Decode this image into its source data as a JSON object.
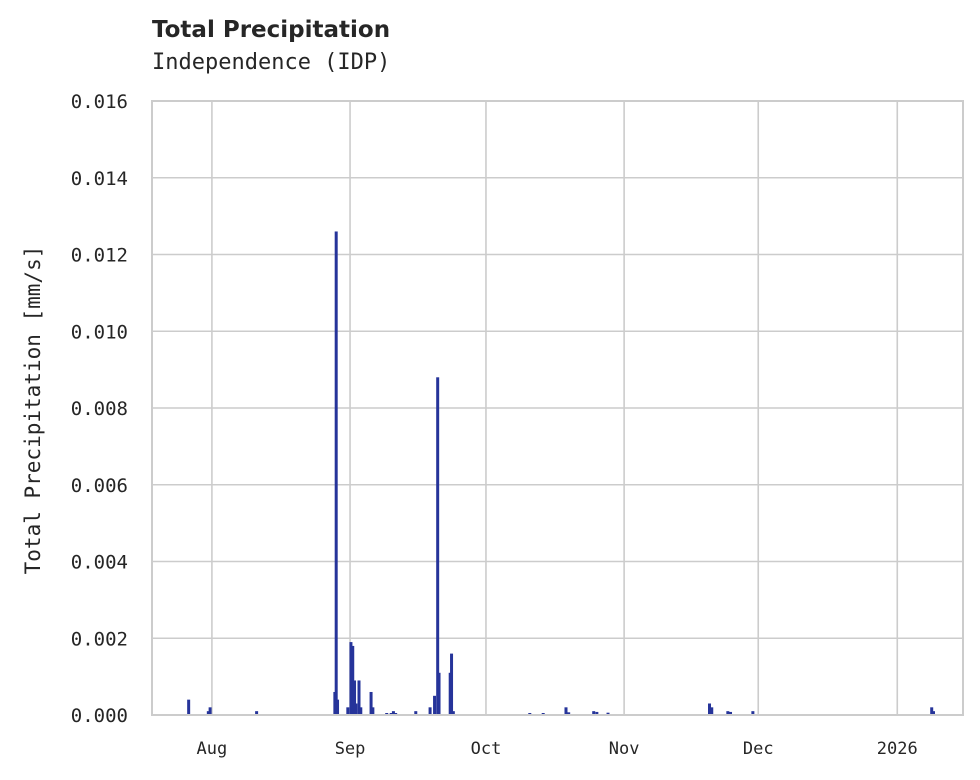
{
  "chart_data": {
    "type": "bar",
    "title": "Total Precipitation",
    "subtitle": "Independence (IDP)",
    "xlabel": "",
    "ylabel": "Total Precipitation [mm/s]",
    "ylim": [
      0,
      0.016
    ],
    "yticks": [
      "0.000",
      "0.002",
      "0.004",
      "0.006",
      "0.008",
      "0.010",
      "0.012",
      "0.014",
      "0.016"
    ],
    "xticks": [
      {
        "label": "Aug",
        "day": 13.4
      },
      {
        "label": "Sep",
        "day": 44.3
      },
      {
        "label": "Oct",
        "day": 74.7
      },
      {
        "label": "Nov",
        "day": 105.6
      },
      {
        "label": "Dec",
        "day": 135.6
      },
      {
        "label": "2026",
        "day": 166.7
      }
    ],
    "x_range_days": [
      0,
      181.4
    ],
    "x_axis_start": "approx. 2025-07-18",
    "grid": true,
    "legend": null,
    "color": "#26349a",
    "series": [
      {
        "name": "Total Precipitation",
        "points": [
          {
            "day": 8.2,
            "value": 0.0004
          },
          {
            "day": 12.6,
            "value": 0.0001
          },
          {
            "day": 13.0,
            "value": 0.0002
          },
          {
            "day": 23.4,
            "value": 0.0001
          },
          {
            "day": 40.9,
            "value": 0.0006
          },
          {
            "day": 41.2,
            "value": 0.0126
          },
          {
            "day": 41.5,
            "value": 0.0004
          },
          {
            "day": 43.8,
            "value": 0.0002
          },
          {
            "day": 44.5,
            "value": 0.0019
          },
          {
            "day": 44.9,
            "value": 0.0018
          },
          {
            "day": 45.3,
            "value": 0.0009
          },
          {
            "day": 45.6,
            "value": 0.0003
          },
          {
            "day": 46.3,
            "value": 0.0009
          },
          {
            "day": 46.7,
            "value": 0.0002
          },
          {
            "day": 49.0,
            "value": 0.0006
          },
          {
            "day": 49.4,
            "value": 0.0002
          },
          {
            "day": 52.5,
            "value": 5e-05
          },
          {
            "day": 53.5,
            "value": 5e-05
          },
          {
            "day": 54.0,
            "value": 0.0001
          },
          {
            "day": 54.5,
            "value": 5e-05
          },
          {
            "day": 59.0,
            "value": 0.0001
          },
          {
            "day": 62.2,
            "value": 0.0002
          },
          {
            "day": 63.2,
            "value": 0.0005
          },
          {
            "day": 63.9,
            "value": 0.0088
          },
          {
            "day": 64.2,
            "value": 0.0011
          },
          {
            "day": 66.7,
            "value": 0.0011
          },
          {
            "day": 67.0,
            "value": 0.0016
          },
          {
            "day": 67.4,
            "value": 0.0001
          },
          {
            "day": 84.5,
            "value": 5e-05
          },
          {
            "day": 87.5,
            "value": 5e-05
          },
          {
            "day": 92.6,
            "value": 0.0002
          },
          {
            "day": 93.2,
            "value": 7e-05
          },
          {
            "day": 98.8,
            "value": 0.0001
          },
          {
            "day": 99.5,
            "value": 8e-05
          },
          {
            "day": 102.0,
            "value": 6e-05
          },
          {
            "day": 124.7,
            "value": 0.0003
          },
          {
            "day": 125.2,
            "value": 0.0002
          },
          {
            "day": 128.8,
            "value": 0.0001
          },
          {
            "day": 129.4,
            "value": 8e-05
          },
          {
            "day": 134.4,
            "value": 0.0001
          },
          {
            "day": 174.4,
            "value": 0.0002
          },
          {
            "day": 174.8,
            "value": 0.0001
          }
        ]
      }
    ]
  }
}
